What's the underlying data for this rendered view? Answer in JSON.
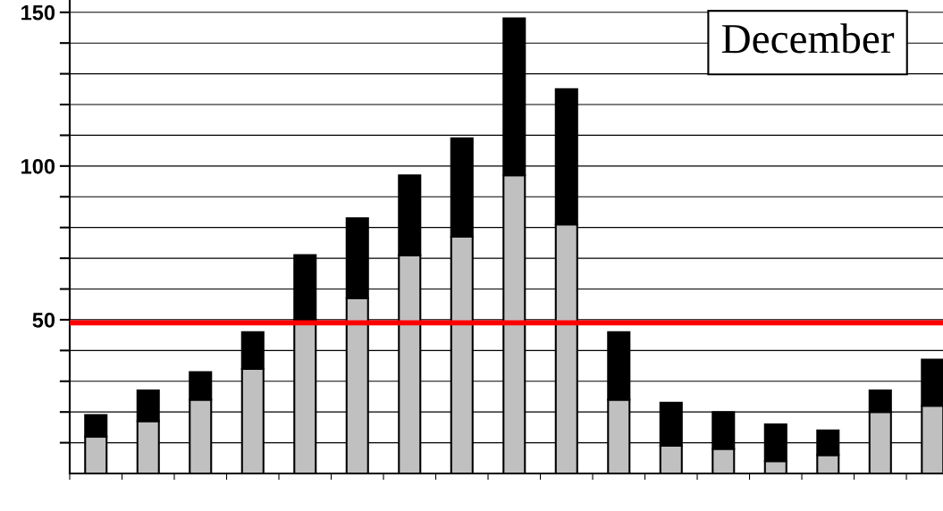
{
  "chart_data": {
    "type": "bar",
    "stacked": true,
    "categories": [
      null,
      null,
      null,
      null,
      null,
      null,
      null,
      null,
      null,
      null,
      null,
      null,
      null,
      null,
      null,
      null,
      null
    ],
    "series": [
      {
        "color": "#c0c0c0",
        "values": [
          12,
          17,
          24,
          34,
          50,
          57,
          71,
          77,
          97,
          81,
          24,
          9,
          8,
          4,
          6,
          20,
          22
        ]
      },
      {
        "color": "#000000",
        "values": [
          7,
          10,
          9,
          12,
          21,
          26,
          26,
          32,
          51,
          44,
          22,
          14,
          12,
          12,
          8,
          7,
          15
        ]
      }
    ],
    "ylim": [
      0,
      154
    ],
    "yticks": [
      {
        "value": 10,
        "label": null
      },
      {
        "value": 20,
        "label": null
      },
      {
        "value": 30,
        "label": null
      },
      {
        "value": 40,
        "label": null
      },
      50,
      {
        "value": 60,
        "label": null
      },
      {
        "value": 70,
        "label": null
      },
      {
        "value": 80,
        "label": null
      },
      {
        "value": 90,
        "label": null
      },
      100,
      {
        "value": 110,
        "label": null
      },
      {
        "value": 120,
        "label": null
      },
      {
        "value": 130,
        "label": null
      },
      {
        "value": 140,
        "label": null
      },
      150
    ],
    "ref_lines": [
      {
        "axis": "y",
        "value": 49,
        "color": "#ff0000"
      }
    ],
    "annotations": [
      "December"
    ],
    "grid": "y",
    "tick_labels": "y",
    "legend": false
  }
}
